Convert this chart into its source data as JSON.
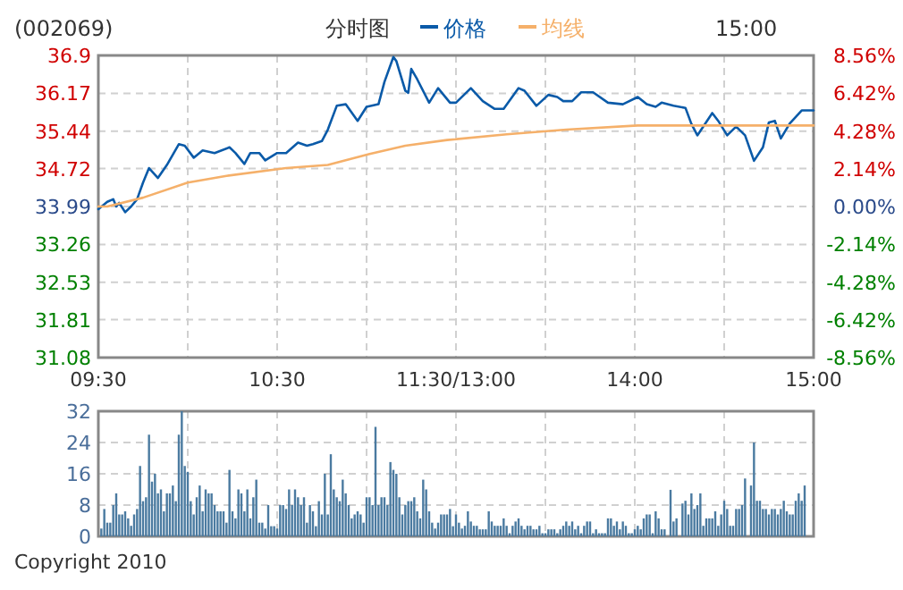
{
  "chart_data": [
    {
      "type": "line",
      "title": "(002069)",
      "subtitle": "分时图",
      "annotations": [
        "15:00"
      ],
      "legend": "top",
      "grid": true,
      "categories": [
        "09:30",
        null,
        null,
        null,
        null,
        null,
        null,
        null,
        null,
        null,
        null,
        null,
        null,
        null,
        null,
        null,
        null,
        null,
        null,
        null,
        null,
        null,
        null,
        null,
        null,
        null,
        null,
        null,
        null,
        null,
        null,
        null,
        null,
        null,
        null,
        null,
        null,
        null,
        null,
        null,
        null,
        null,
        null,
        null,
        null,
        null,
        null,
        null,
        null,
        null,
        null,
        null,
        null,
        null,
        null,
        null,
        null,
        null,
        null,
        null,
        "10:30",
        null,
        null,
        null,
        null,
        null,
        null,
        null,
        null,
        null,
        null,
        null,
        null,
        null,
        null,
        null,
        null,
        null,
        null,
        null,
        null,
        null,
        null,
        null,
        null,
        null,
        null,
        null,
        null,
        null,
        null,
        null,
        null,
        null,
        null,
        null,
        null,
        null,
        null,
        null,
        null,
        null,
        null,
        null,
        null,
        null,
        null,
        null,
        null,
        null,
        null,
        null,
        null,
        null,
        null,
        null,
        null,
        null,
        null,
        null,
        "11:30/13:00",
        null,
        null,
        null,
        null,
        null,
        null,
        null,
        null,
        null,
        null,
        null,
        null,
        null,
        null,
        null,
        null,
        null,
        null,
        null,
        null,
        null,
        null,
        null,
        null,
        null,
        null,
        null,
        null,
        null,
        null,
        null,
        null,
        null,
        null,
        null,
        null,
        null,
        null,
        null,
        null,
        null,
        null,
        null,
        null,
        null,
        null,
        null,
        null,
        null,
        null,
        null,
        null,
        null,
        null,
        null,
        null,
        null,
        null,
        null,
        "14:00",
        null,
        null,
        null,
        null,
        null,
        null,
        null,
        null,
        null,
        null,
        null,
        null,
        null,
        null,
        null,
        null,
        null,
        null,
        null,
        null,
        null,
        null,
        null,
        null,
        null,
        null,
        null,
        null,
        null,
        null,
        null,
        null,
        null,
        null,
        null,
        null,
        null,
        null,
        null,
        null,
        null,
        null,
        null,
        null,
        null,
        null,
        null,
        null,
        null,
        null,
        null,
        null,
        null,
        null,
        null,
        null,
        null,
        null,
        null,
        "15:00"
      ],
      "ylim": [
        31.08,
        36.9
      ],
      "yticks": [
        31.08,
        31.81,
        32.53,
        33.26,
        33.99,
        34.72,
        35.44,
        36.17,
        36.9
      ],
      "y2lim": [
        -8.56,
        8.56
      ],
      "y2ticks": [
        {
          "value": -8.56,
          "label": "-8.56%"
        },
        {
          "value": -6.42,
          "label": "-6.42%"
        },
        {
          "value": -4.28,
          "label": "-4.28%"
        },
        {
          "value": -2.14,
          "label": "-2.14%"
        },
        {
          "value": 0,
          "label": "0.00%"
        },
        {
          "value": 2.14,
          "label": "2.14%"
        },
        {
          "value": 4.28,
          "label": "4.28%"
        },
        {
          "value": 6.42,
          "label": "6.42%"
        },
        {
          "value": 8.56,
          "label": "8.56%"
        }
      ],
      "series": [
        {
          "name": "价格",
          "color": "#0a5aa8",
          "values": [
            33.94,
            null,
            null,
            34.08,
            null,
            34.13,
            33.99,
            34.06,
            null,
            33.88,
            null,
            33.99,
            null,
            34.13,
            null,
            34.45,
            null,
            34.73,
            null,
            null,
            34.54,
            null,
            null,
            34.79,
            null,
            null,
            null,
            35.19,
            null,
            35.16,
            null,
            null,
            34.93,
            null,
            null,
            35.07,
            null,
            null,
            null,
            35.02,
            null,
            null,
            null,
            null,
            35.13,
            null,
            35.02,
            null,
            null,
            34.81,
            null,
            35.02,
            null,
            null,
            35.02,
            null,
            34.88,
            null,
            null,
            null,
            35.02,
            null,
            null,
            35.02,
            null,
            null,
            null,
            35.22,
            null,
            null,
            35.16,
            null,
            35.19,
            null,
            null,
            35.25,
            null,
            35.47,
            null,
            null,
            35.93,
            null,
            null,
            35.96,
            null,
            null,
            null,
            35.64,
            null,
            null,
            35.91,
            null,
            null,
            null,
            35.96,
            null,
            36.39,
            null,
            null,
            36.87,
            36.79,
            null,
            null,
            36.22,
            36.18,
            36.64,
            null,
            36.44,
            null,
            null,
            null,
            35.99,
            null,
            null,
            36.27,
            null,
            null,
            null,
            35.99,
            null,
            35.99,
            null,
            null,
            null,
            null,
            36.27,
            null,
            null,
            null,
            36.02,
            null,
            null,
            null,
            35.87,
            null,
            null,
            35.87,
            null,
            null,
            null,
            null,
            36.27,
            null,
            36.22,
            null,
            null,
            null,
            35.93,
            null,
            null,
            null,
            36.14,
            null,
            null,
            36.1,
            null,
            36.02,
            null,
            null,
            36.02,
            null,
            null,
            36.19,
            null,
            null,
            null,
            36.19,
            null,
            null,
            null,
            null,
            35.99,
            null,
            null,
            null,
            null,
            35.96,
            null,
            null,
            null,
            null,
            36.1,
            null,
            null,
            35.96,
            null,
            null,
            35.91,
            null,
            35.99,
            null,
            null,
            null,
            35.93,
            null,
            null,
            null,
            35.89,
            null,
            35.58,
            null,
            35.36,
            null,
            35.53,
            null,
            null,
            35.79,
            null,
            35.64,
            null,
            null,
            35.36,
            null,
            null,
            35.53,
            null,
            null,
            35.36,
            null,
            null,
            34.87,
            null,
            null,
            35.13,
            null,
            35.61,
            null,
            35.64,
            null,
            35.3,
            null,
            null,
            35.59,
            null,
            null,
            null,
            35.84,
            null,
            null,
            null,
            35.84
          ]
        },
        {
          "name": "均线",
          "color": "#f5b06a",
          "values": [
            33.99,
            null,
            null,
            33.99,
            null,
            null,
            null,
            null,
            null,
            null,
            null,
            null,
            null,
            null,
            null,
            34.16,
            null,
            null,
            null,
            null,
            null,
            null,
            null,
            null,
            null,
            null,
            null,
            null,
            null,
            null,
            34.45,
            null,
            null,
            null,
            null,
            null,
            null,
            null,
            null,
            null,
            null,
            null,
            null,
            34.58,
            null,
            null,
            null,
            null,
            null,
            null,
            null,
            null,
            null,
            null,
            null,
            null,
            null,
            null,
            null,
            null,
            null,
            null,
            null,
            34.73,
            null,
            null,
            null,
            null,
            null,
            null,
            null,
            null,
            null,
            null,
            null,
            null,
            null,
            34.79,
            null,
            null,
            null,
            null,
            null,
            null,
            null,
            null,
            null,
            null,
            null,
            null,
            null,
            35.0,
            null,
            null,
            null,
            null,
            null,
            null,
            null,
            null,
            null,
            null,
            null,
            35.16,
            null,
            null,
            null,
            null,
            null,
            null,
            null,
            null,
            null,
            null,
            null,
            null,
            null,
            35.27,
            null,
            null,
            null,
            null,
            null,
            null,
            null,
            null,
            null,
            null,
            null,
            null,
            null,
            null,
            null,
            null,
            null,
            null,
            null,
            35.38,
            null,
            null,
            null,
            null,
            null,
            null,
            null,
            null,
            null,
            null,
            null,
            null,
            null,
            null,
            null,
            null,
            null,
            null,
            null,
            35.47,
            null,
            null,
            null,
            null,
            null,
            null,
            null,
            null,
            null,
            null,
            null,
            null,
            null,
            null,
            null,
            null,
            null,
            null,
            null,
            null,
            null,
            null,
            null,
            35.55,
            null,
            null,
            null,
            null,
            null,
            null,
            null,
            null,
            null,
            null,
            null,
            null,
            null,
            null,
            null,
            null,
            null,
            null,
            null,
            null,
            null,
            null,
            null,
            null,
            null,
            null,
            null,
            null,
            null,
            null,
            null,
            null,
            null,
            null,
            null,
            null,
            null,
            null,
            null,
            null,
            null,
            null,
            null,
            null,
            null,
            null,
            null,
            null,
            null,
            null,
            null,
            null,
            null,
            null,
            null,
            null,
            null,
            null,
            35.55
          ]
        }
      ]
    },
    {
      "type": "bar",
      "grid": true,
      "tick_labels": "y",
      "color": "#4a7aa0",
      "annotations": [
        "Copyright 2010"
      ],
      "categories": [
        null,
        null,
        null,
        null,
        null,
        null,
        null,
        null,
        null,
        null,
        null,
        null,
        null,
        null,
        null,
        null,
        null,
        null,
        null,
        null,
        null,
        null,
        null,
        null,
        null,
        null,
        null,
        null,
        null,
        null,
        null,
        null,
        null,
        null,
        null,
        null,
        null,
        null,
        null,
        null,
        null,
        null,
        null,
        null,
        null,
        null,
        null,
        null,
        null,
        null,
        null,
        null,
        null,
        null,
        null,
        null,
        null,
        null,
        null,
        null,
        null,
        null,
        null,
        null,
        null,
        null,
        null,
        null,
        null,
        null,
        null,
        null,
        null,
        null,
        null,
        null,
        null,
        null,
        null,
        null,
        null,
        null,
        null,
        null,
        null,
        null,
        null,
        null,
        null,
        null,
        null,
        null,
        null,
        null,
        null,
        null,
        null,
        null,
        null,
        null,
        null,
        null,
        null,
        null,
        null,
        null,
        null,
        null,
        null,
        null,
        null,
        null,
        null,
        null,
        null,
        null,
        null,
        null,
        null,
        null,
        null,
        null,
        null,
        null,
        null,
        null,
        null,
        null,
        null,
        null,
        null,
        null,
        null,
        null,
        null,
        null,
        null,
        null,
        null,
        null,
        null,
        null,
        null,
        null,
        null,
        null,
        null,
        null,
        null,
        null,
        null,
        null,
        null,
        null,
        null,
        null,
        null,
        null,
        null,
        null,
        null,
        null,
        null,
        null,
        null,
        null,
        null,
        null,
        null,
        null,
        null,
        null,
        null,
        null,
        null,
        null,
        null,
        null,
        null,
        null,
        null,
        null,
        null,
        null,
        null,
        null,
        null,
        null,
        null,
        null,
        null,
        null,
        null,
        null,
        null,
        null,
        null,
        null,
        null,
        null,
        null,
        null,
        null,
        null,
        null,
        null,
        null,
        null,
        null,
        null,
        null,
        null,
        null,
        null,
        null,
        null,
        null,
        null,
        null,
        null,
        null,
        null,
        null,
        null,
        null,
        null,
        null,
        null,
        null,
        null,
        null,
        null,
        null,
        null,
        null,
        null,
        null,
        null,
        null,
        null,
        null
      ],
      "ylim": [
        0,
        32
      ],
      "yticks": [
        0,
        8,
        16,
        24,
        32
      ],
      "values": [
        null,
        2,
        7,
        3.5,
        3.5,
        8,
        11,
        5.6,
        5.6,
        6.4,
        4.6,
        2.7,
        5.6,
        7,
        18,
        9,
        10,
        26,
        14,
        16,
        11,
        12,
        6.4,
        11,
        11,
        13,
        9,
        26,
        32,
        18,
        16.5,
        9,
        5.6,
        10,
        13,
        6.4,
        12,
        11,
        11,
        8,
        6.4,
        6.4,
        6.4,
        3.5,
        17,
        6.4,
        4.6,
        12,
        11,
        6.4,
        12,
        4.6,
        10,
        14.5,
        3.5,
        3.5,
        2,
        8,
        2.6,
        2.6,
        2,
        8,
        8,
        7,
        12,
        8,
        12,
        10,
        8,
        10,
        3.5,
        8,
        6.4,
        2.6,
        9,
        5.6,
        16,
        5.6,
        21,
        12,
        10,
        9,
        14.5,
        11,
        8,
        4.6,
        5.6,
        6.4,
        5.6,
        3.5,
        10,
        10,
        8,
        28,
        8,
        10,
        10,
        8,
        19,
        17,
        16,
        10,
        5.6,
        8,
        9,
        9,
        10,
        6.4,
        4.6,
        14.5,
        12,
        6.4,
        3.5,
        2,
        3.5,
        5.6,
        5.6,
        5.6,
        7,
        2.6,
        5.6,
        3.5,
        2,
        2.7,
        6.4,
        3.8,
        2.7,
        2.7,
        1.8,
        1.8,
        1.8,
        6.4,
        3.8,
        2.7,
        2.7,
        2.7,
        4.6,
        2.7,
        0.8,
        2.7,
        3.8,
        4.6,
        2.7,
        1.8,
        2.7,
        2.7,
        1.8,
        1.8,
        2.7,
        0.8,
        0.8,
        1.8,
        1.8,
        1.8,
        0.8,
        1.8,
        2.7,
        3.8,
        2.7,
        3.8,
        1.8,
        2.7,
        0.8,
        2.7,
        3.8,
        3.8,
        0.8,
        1.8,
        0.8,
        0.8,
        0.8,
        4.6,
        4.6,
        2.7,
        3.8,
        1.8,
        3.8,
        2.7,
        0.8,
        0.8,
        1.8,
        2.7,
        1.8,
        4.6,
        5.6,
        5.6,
        0.8,
        6.4,
        4.6,
        1.8,
        1.8,
        null,
        11.9,
        3.8,
        4.6,
        null,
        8.4,
        9.1,
        5.6,
        11,
        7,
        8,
        11,
        2.7,
        4.6,
        4.6,
        4.6,
        6.4,
        2.7,
        5.6,
        9.1,
        7,
        2.7,
        2.7,
        7,
        7,
        8,
        14.8,
        null,
        13,
        24,
        9.1,
        9.1,
        7,
        7,
        5.6,
        7,
        7,
        5.6,
        7,
        9.1,
        6.4,
        5.6,
        5.6,
        9.1,
        11,
        9.1,
        13,
        null,
        null,
        null
      ]
    }
  ]
}
